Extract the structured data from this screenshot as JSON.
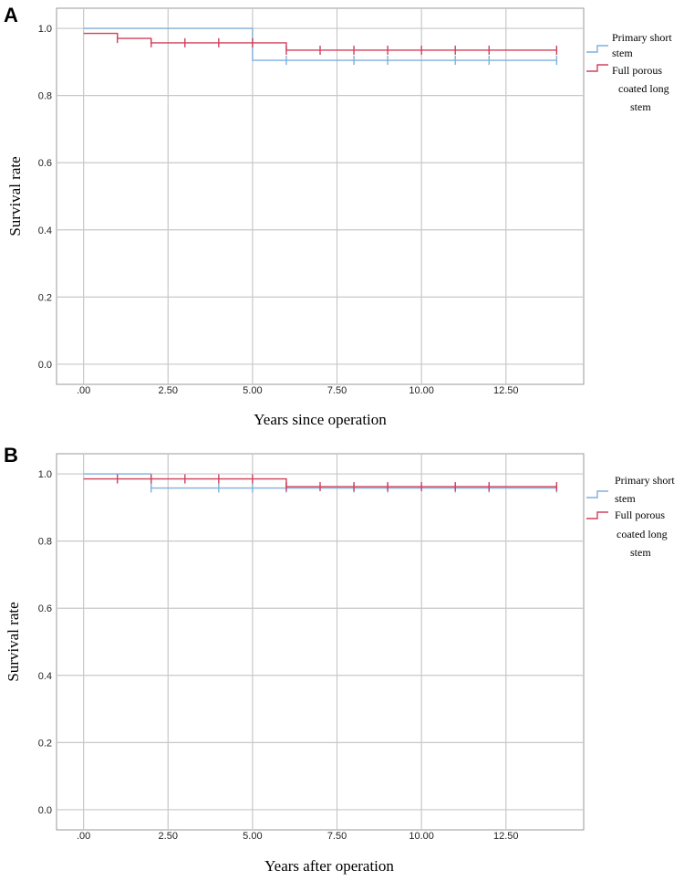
{
  "colors": {
    "primary_short": "#7fb0de",
    "full_porous": "#d0405c",
    "grid": "#c8c8c8",
    "frame": "#9a9a9a"
  },
  "chart_data": [
    {
      "panel": "A",
      "type": "line",
      "subtype": "kaplan-meier step",
      "xlabel": "Years since operation",
      "ylabel": "Survival rate",
      "xlim": [
        -0.8,
        14.8
      ],
      "ylim": [
        -0.06,
        1.06
      ],
      "x_ticks": [
        0,
        2.5,
        5,
        7.5,
        10,
        12.5
      ],
      "x_tick_labels": [
        ".00",
        "2.50",
        "5.00",
        "7.50",
        "10.00",
        "12.50"
      ],
      "y_ticks": [
        0,
        0.2,
        0.4,
        0.6,
        0.8,
        1.0
      ],
      "y_tick_labels": [
        "0.0",
        "0.2",
        "0.4",
        "0.6",
        "0.8",
        "1.0"
      ],
      "grid": true,
      "legend_position": "right",
      "legend": [
        "Primary short stem",
        "Full porous coated long stem"
      ],
      "series": [
        {
          "name": "Primary short stem",
          "color_key": "primary_short",
          "steps": [
            [
              0,
              1.0
            ],
            [
              2,
              1.0
            ],
            [
              5,
              0.905
            ],
            [
              14,
              0.905
            ]
          ],
          "censored": [
            6,
            8,
            9,
            11,
            12,
            14
          ]
        },
        {
          "name": "Full porous coated long stem",
          "color_key": "full_porous",
          "steps": [
            [
              0,
              0.985
            ],
            [
              1,
              0.97
            ],
            [
              2,
              0.957
            ],
            [
              6,
              0.935
            ],
            [
              14,
              0.935
            ]
          ],
          "censored": [
            1,
            2,
            3,
            4,
            5,
            6,
            7,
            8,
            9,
            10,
            11,
            12,
            14
          ]
        }
      ]
    },
    {
      "panel": "B",
      "type": "line",
      "subtype": "kaplan-meier step",
      "xlabel": "Years after operation",
      "ylabel": "Survival rate",
      "xlim": [
        -0.8,
        14.8
      ],
      "ylim": [
        -0.06,
        1.06
      ],
      "x_ticks": [
        0,
        2.5,
        5,
        7.5,
        10,
        12.5
      ],
      "x_tick_labels": [
        ".00",
        "2.50",
        "5.00",
        "7.50",
        "10.00",
        "12.50"
      ],
      "y_ticks": [
        0,
        0.2,
        0.4,
        0.6,
        0.8,
        1.0
      ],
      "y_tick_labels": [
        "0.0",
        "0.2",
        "0.4",
        "0.6",
        "0.8",
        "1.0"
      ],
      "grid": true,
      "legend_position": "right",
      "legend": [
        "Primary short stem",
        "Full porous coated long stem"
      ],
      "series": [
        {
          "name": "Primary short stem",
          "color_key": "primary_short",
          "steps": [
            [
              0,
              1.0
            ],
            [
              2,
              0.958
            ],
            [
              14,
              0.958
            ]
          ],
          "censored": [
            2,
            4,
            5,
            6,
            8,
            9,
            11,
            12,
            14
          ]
        },
        {
          "name": "Full porous coated long stem",
          "color_key": "full_porous",
          "steps": [
            [
              0,
              0.985
            ],
            [
              6,
              0.962
            ],
            [
              14,
              0.962
            ]
          ],
          "censored": [
            1,
            2,
            3,
            4,
            5,
            6,
            7,
            8,
            9,
            10,
            11,
            12,
            14
          ]
        }
      ]
    }
  ],
  "panels": {
    "a": {
      "letter": "A",
      "xlabel": "Years since operation",
      "ylabel": "Survival rate",
      "legend": {
        "item1_line1": "Primary short",
        "item1_line2": "stem",
        "item2_line1": "Full porous",
        "item2_line2": "coated long",
        "item2_line3": "stem"
      }
    },
    "b": {
      "letter": "B",
      "xlabel": "Years after operation",
      "ylabel": "Survival rate",
      "legend": {
        "item1_line1": "Primary short",
        "item1_line2": "stem",
        "item2_line1": "Full porous",
        "item2_line2": "coated long",
        "item2_line3": "stem"
      }
    }
  }
}
